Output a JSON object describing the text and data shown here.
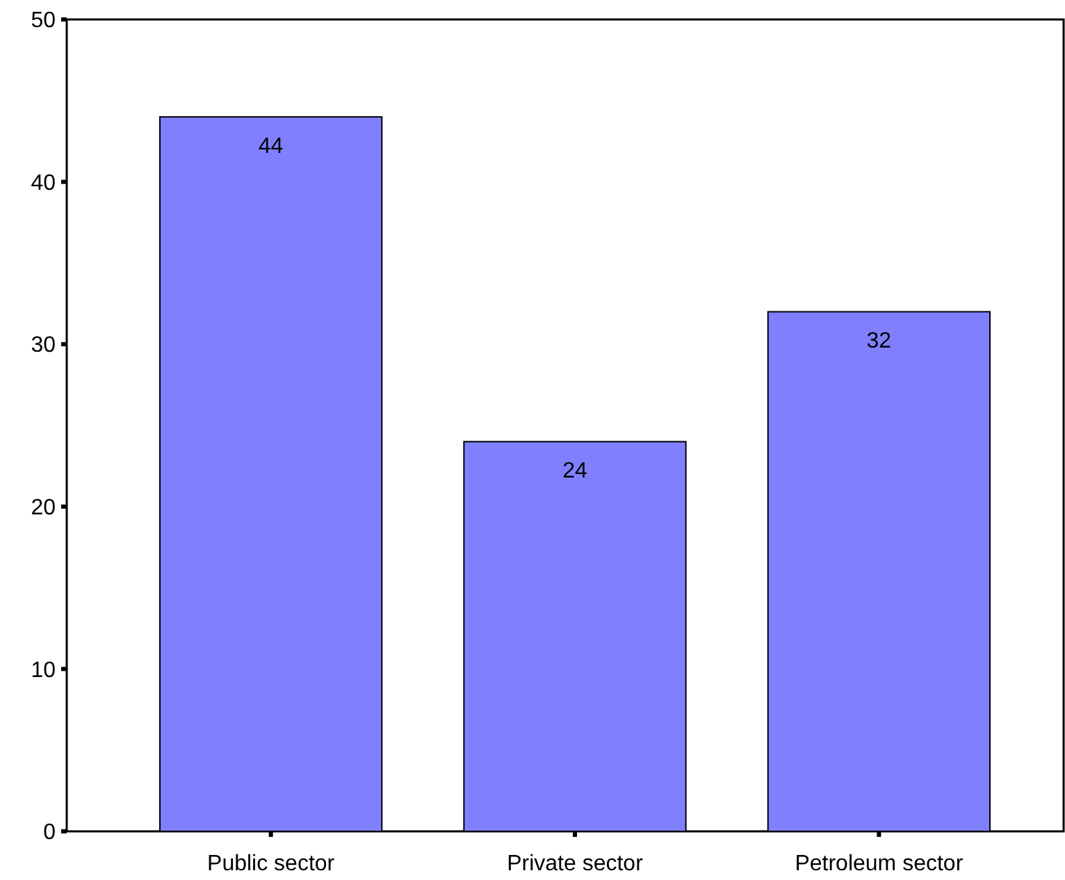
{
  "chart_data": {
    "type": "bar",
    "categories": [
      "Public sector",
      "Private sector",
      "Petroleum sector"
    ],
    "values": [
      44,
      24,
      32
    ],
    "color": "#8080ff",
    "ylim": [
      0,
      50
    ],
    "yticks": [
      0,
      10,
      20,
      30,
      40,
      50
    ],
    "data_labels": true
  }
}
